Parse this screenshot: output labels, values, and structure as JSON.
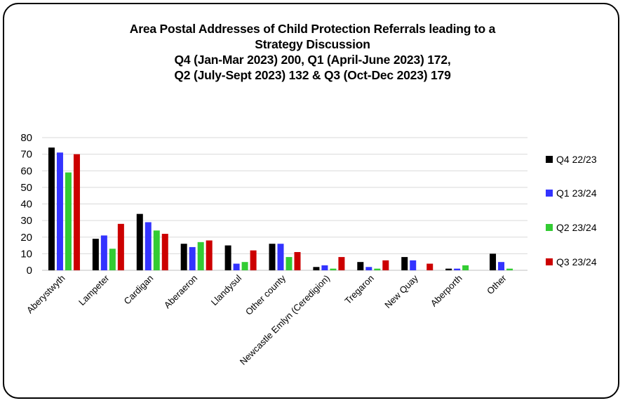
{
  "chart_data": {
    "type": "bar",
    "title_lines": [
      "Area Postal Addresses of Child Protection Referrals leading to a",
      "Strategy Discussion",
      "Q4 (Jan-Mar 2023) 200, Q1 (April-June 2023) 172,",
      "Q2 (July-Sept 2023) 132 & Q3 (Oct-Dec 2023) 179"
    ],
    "categories": [
      "Aberystwyth",
      "Lampeter",
      "Cardigan",
      "Aberaeron",
      "Llandysul",
      "Other county",
      "Newcastle Emlyn (Ceredigion)",
      "Tregaron",
      "New Quay",
      "Aberporth",
      "Other"
    ],
    "series": [
      {
        "name": "Q4 22/23",
        "color": "#000000",
        "values": [
          74,
          19,
          34,
          16,
          15,
          16,
          2,
          5,
          8,
          1,
          10
        ]
      },
      {
        "name": "Q1 23/24",
        "color": "#3333ff",
        "values": [
          71,
          21,
          29,
          14,
          4,
          16,
          3,
          2,
          6,
          1,
          5
        ]
      },
      {
        "name": "Q2 23/24",
        "color": "#33cc33",
        "values": [
          59,
          13,
          24,
          17,
          5,
          8,
          1,
          1,
          0,
          3,
          1
        ]
      },
      {
        "name": "Q3 23/24",
        "color": "#cc0000",
        "values": [
          70,
          28,
          22,
          18,
          12,
          11,
          8,
          6,
          4,
          0,
          0
        ]
      }
    ],
    "ylim": [
      0,
      80
    ],
    "yticks": [
      0,
      10,
      20,
      30,
      40,
      50,
      60,
      70,
      80
    ],
    "grid": true,
    "legend_position": "right"
  }
}
